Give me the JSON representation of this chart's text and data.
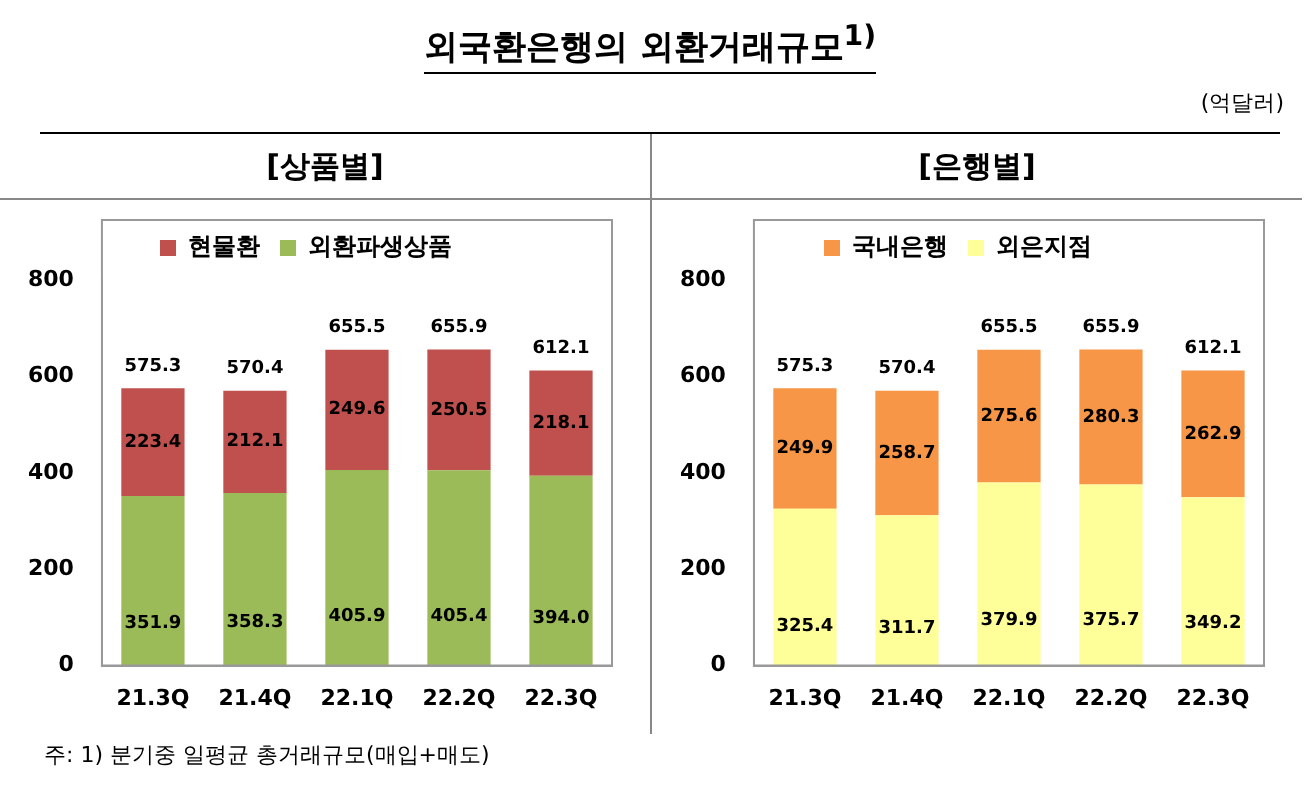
{
  "chart_data": [
    {
      "type": "bar",
      "title": "외국환은행의 외환거래규모$^{1)}$",
      "subtitle": "[상품별]",
      "annotations": [
        "주: 1) 분기중 일평균 총거래규모(매입+매도)"
      ],
      "categories": [
        "21.3Q",
        "21.4Q",
        "22.1Q",
        "22.2Q",
        "22.3Q"
      ],
      "stacked": true,
      "series": [
        {
          "name": "외환파생상품",
          "color": "#9bbb59",
          "values": [
            351.9,
            358.3,
            405.9,
            405.4,
            394.0
          ],
          "value_labels": [
            "351.9",
            "358.3",
            "405.9",
            "405.4",
            "394.0"
          ]
        },
        {
          "name": "현물환",
          "color": "#c0504d",
          "values": [
            223.4,
            212.1,
            249.6,
            250.5,
            218.1
          ],
          "value_labels": [
            "223.4",
            "212.1",
            "249.6",
            "250.5",
            "218.1"
          ]
        }
      ],
      "totals": [
        "575.3",
        "570.4",
        "655.5",
        "655.9",
        "612.1"
      ],
      "ylim": [
        0,
        800
      ],
      "yticks": [
        0,
        200,
        400,
        600,
        800
      ],
      "grid": false,
      "legend": "top"
    },
    {
      "type": "bar",
      "title": "[은행별]",
      "annotations": [
        "(억달러)"
      ],
      "categories": [
        "21.3Q",
        "21.4Q",
        "22.1Q",
        "22.2Q",
        "22.3Q"
      ],
      "stacked": true,
      "series": [
        {
          "name": "외은지점",
          "color": "#ffff99",
          "values": [
            325.4,
            311.7,
            379.9,
            375.7,
            349.2
          ],
          "value_labels": [
            "325.4",
            "311.7",
            "379.9",
            "375.7",
            "349.2"
          ]
        },
        {
          "name": "국내은행",
          "color": "#f79646",
          "values": [
            249.9,
            258.7,
            275.6,
            280.3,
            262.9
          ],
          "value_labels": [
            "249.9",
            "258.7",
            "275.6",
            "280.3",
            "262.9"
          ]
        }
      ],
      "totals": [
        "575.3",
        "570.4",
        "655.5",
        "655.9",
        "612.1"
      ],
      "ylim": [
        0,
        800
      ],
      "yticks": [
        0,
        200,
        400,
        600,
        800
      ],
      "grid": false,
      "legend": "top"
    }
  ]
}
